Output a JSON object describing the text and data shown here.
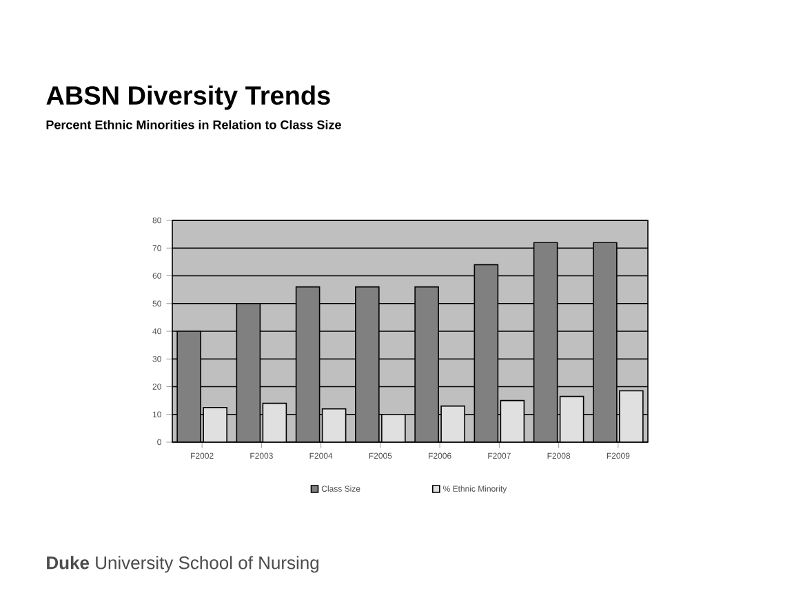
{
  "chart_data": {
    "type": "bar",
    "title": "ABSN Diversity Trends",
    "subtitle": "Percent Ethnic Minorities in Relation to Class Size",
    "categories": [
      "F2002",
      "F2003",
      "F2004",
      "F2005",
      "F2006",
      "F2007",
      "F2008",
      "F2009"
    ],
    "series": [
      {
        "name": "Class Size",
        "color": "#808080",
        "values": [
          40,
          50,
          56,
          56,
          56,
          64,
          72,
          72
        ]
      },
      {
        "name": "% Ethnic Minority",
        "color": "#e0e0e0",
        "values": [
          12.5,
          14,
          12,
          10,
          13,
          15,
          16.5,
          18.5
        ]
      }
    ],
    "ylim": [
      0,
      80
    ],
    "yticks": [
      0,
      10,
      20,
      30,
      40,
      50,
      60,
      70,
      80
    ],
    "grid": "y",
    "legend": "bottom",
    "annotations": [
      "**Duke** University School of Nursing"
    ]
  }
}
